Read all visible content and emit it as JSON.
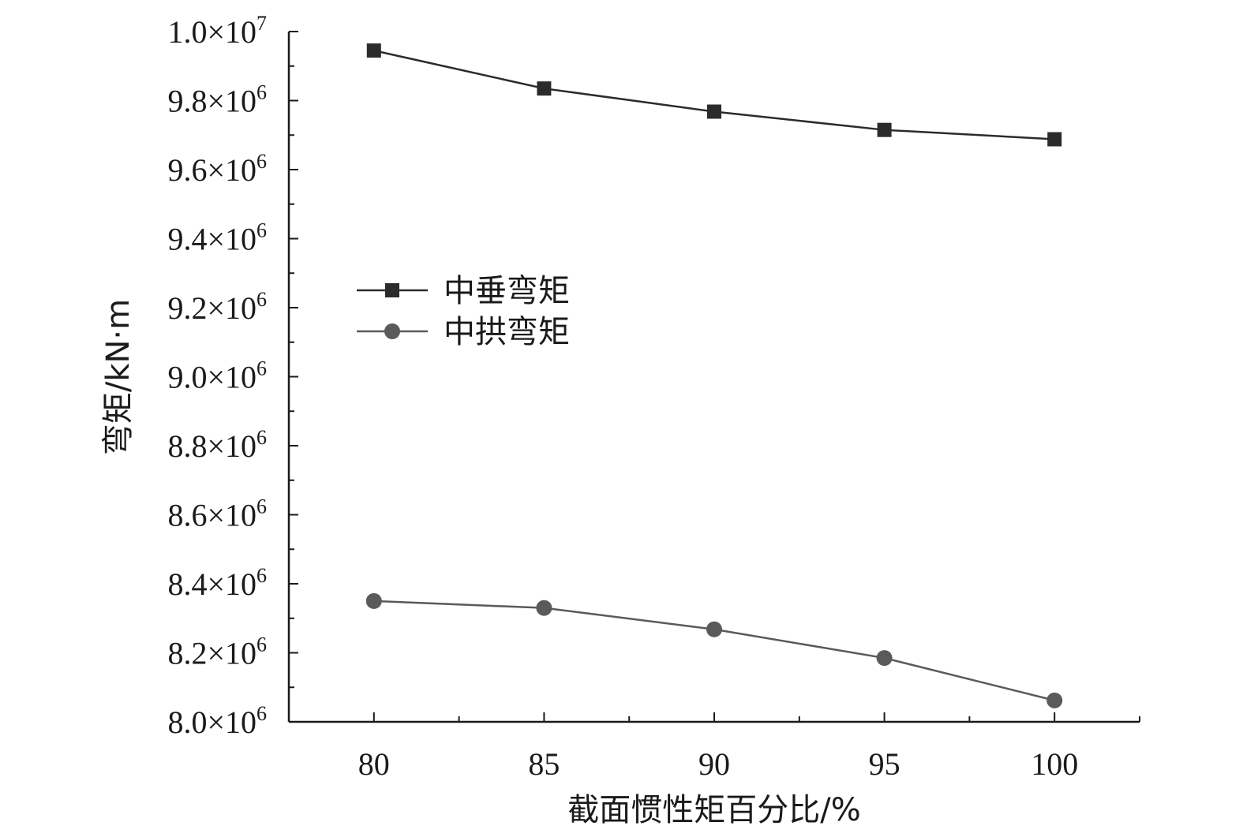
{
  "chart_data": {
    "type": "line",
    "xlabel": "截面惯性矩百分比/%",
    "ylabel": "弯矩/kN·m",
    "x": [
      80,
      85,
      90,
      95,
      100
    ],
    "xlim": [
      77.5,
      102.5
    ],
    "ylim": [
      8000000,
      10000000
    ],
    "x_ticks": [
      "80",
      "85",
      "90",
      "95",
      "100"
    ],
    "y_ticks": [
      {
        "mantissa": "8.0",
        "times": "×10",
        "exp": "6"
      },
      {
        "mantissa": "8.2",
        "times": "×10",
        "exp": "6"
      },
      {
        "mantissa": "8.4",
        "times": "×10",
        "exp": "6"
      },
      {
        "mantissa": "8.6",
        "times": "×10",
        "exp": "6"
      },
      {
        "mantissa": "8.8",
        "times": "×10",
        "exp": "6"
      },
      {
        "mantissa": "9.0",
        "times": "×10",
        "exp": "6"
      },
      {
        "mantissa": "9.2",
        "times": "×10",
        "exp": "6"
      },
      {
        "mantissa": "9.4",
        "times": "×10",
        "exp": "6"
      },
      {
        "mantissa": "9.6",
        "times": "×10",
        "exp": "6"
      },
      {
        "mantissa": "9.8",
        "times": "×10",
        "exp": "6"
      },
      {
        "mantissa": "1.0",
        "times": "×10",
        "exp": "7"
      }
    ],
    "grid": false,
    "legend_position": "center-left",
    "series": [
      {
        "name": "中垂弯矩",
        "marker": "square",
        "color": "#2b2b2b",
        "values": [
          9945000,
          9835000,
          9768000,
          9715000,
          9688000
        ]
      },
      {
        "name": "中拱弯矩",
        "marker": "circle",
        "color": "#5a5a5a",
        "values": [
          8350000,
          8330000,
          8268000,
          8185000,
          8062000
        ]
      }
    ]
  }
}
